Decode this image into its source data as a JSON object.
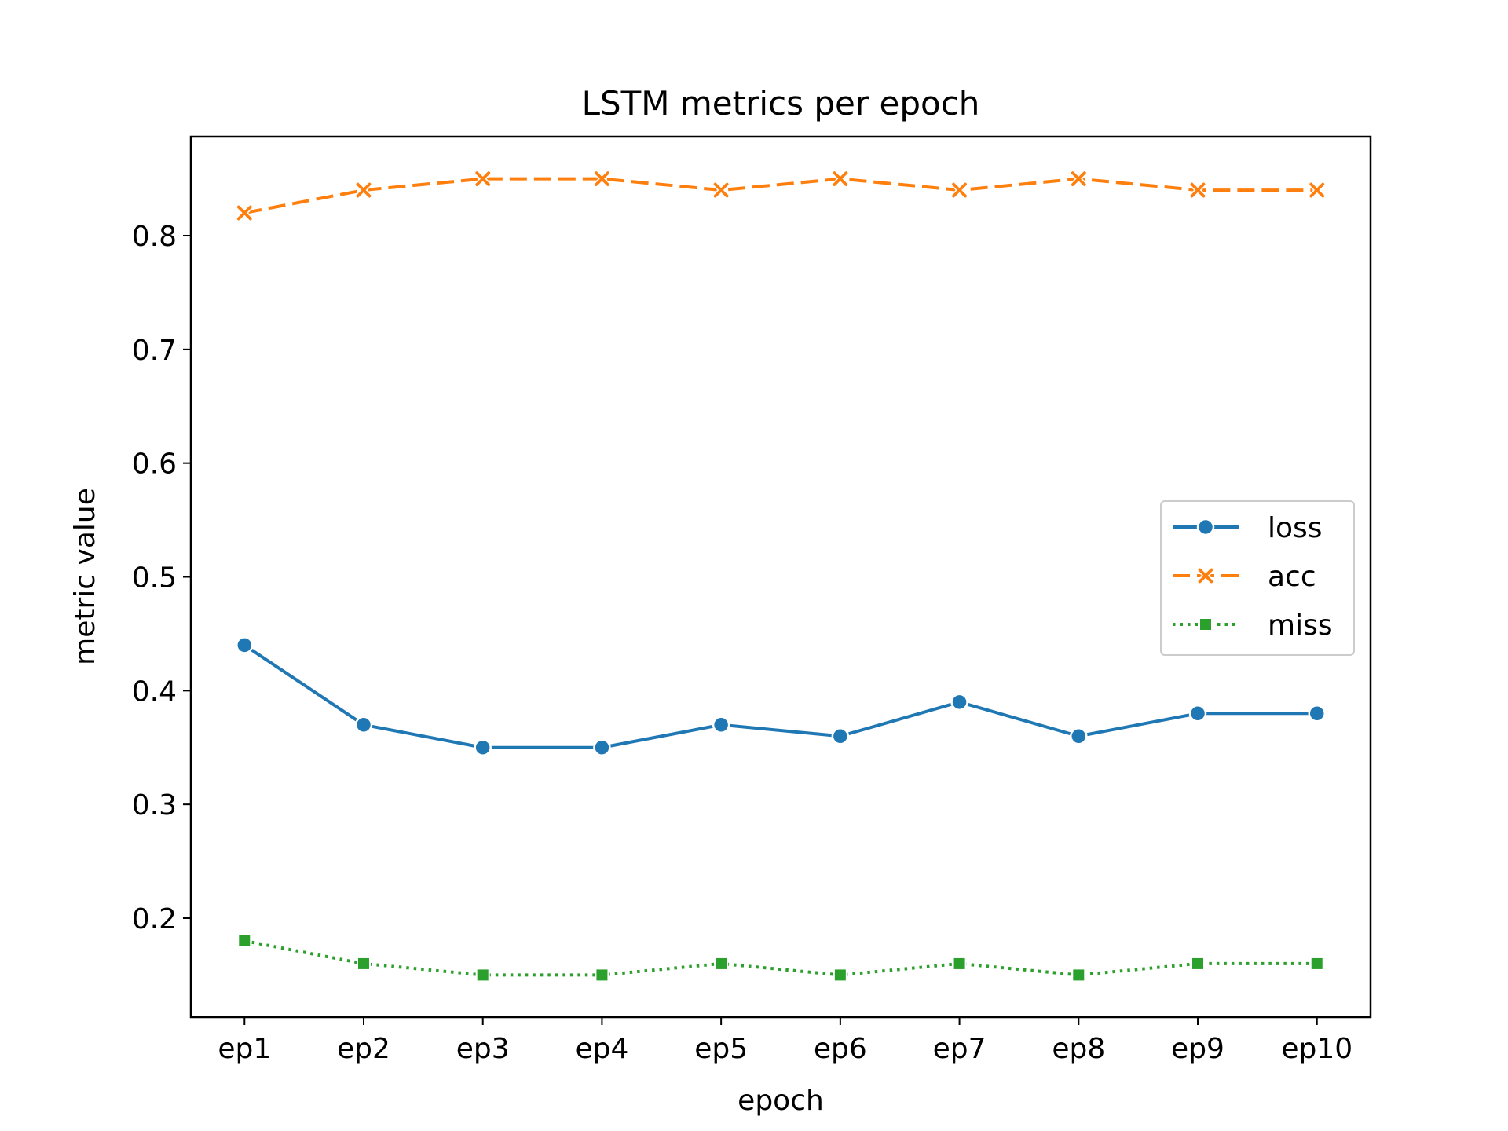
{
  "chart_data": {
    "type": "line",
    "title": "LSTM metrics per epoch",
    "xlabel": "epoch",
    "ylabel": "metric value",
    "categories": [
      "ep1",
      "ep2",
      "ep3",
      "ep4",
      "ep5",
      "ep6",
      "ep7",
      "ep8",
      "ep9",
      "ep10"
    ],
    "ylim": [
      0.113,
      0.887
    ],
    "yticks": [
      0.2,
      0.3,
      0.4,
      0.5,
      0.6,
      0.7,
      0.8
    ],
    "ytick_labels": [
      "0.2",
      "0.3",
      "0.4",
      "0.5",
      "0.6",
      "0.7",
      "0.8"
    ],
    "grid": false,
    "legend_position": "center-right",
    "series": [
      {
        "name": "loss",
        "color": "#1f77b4",
        "line_style": "solid",
        "marker": "circle",
        "values": [
          0.44,
          0.37,
          0.35,
          0.35,
          0.37,
          0.36,
          0.39,
          0.36,
          0.38,
          0.38
        ]
      },
      {
        "name": "acc",
        "color": "#ff7f0e",
        "line_style": "dashed",
        "marker": "x",
        "values": [
          0.82,
          0.84,
          0.85,
          0.85,
          0.84,
          0.85,
          0.84,
          0.85,
          0.84,
          0.84
        ]
      },
      {
        "name": "miss",
        "color": "#2ca02c",
        "line_style": "dotted",
        "marker": "square",
        "values": [
          0.18,
          0.16,
          0.15,
          0.15,
          0.16,
          0.15,
          0.16,
          0.15,
          0.16,
          0.16
        ]
      }
    ]
  }
}
